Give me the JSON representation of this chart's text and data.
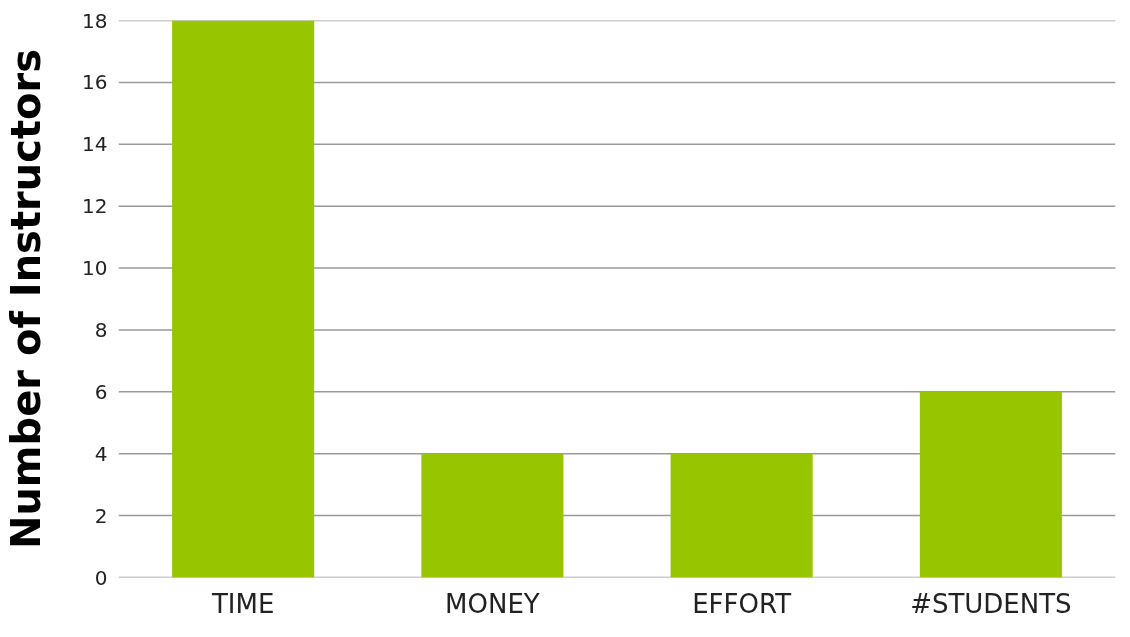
{
  "chart_data": {
    "type": "bar",
    "ylabel": "Number of Instructors",
    "categories": [
      "TIME",
      "MONEY",
      "EFFORT",
      "#STUDENTS"
    ],
    "values": [
      18,
      4,
      4,
      6
    ],
    "color": "#97c500",
    "ylim": [
      0,
      18
    ],
    "yticks": [
      0,
      2,
      4,
      6,
      8,
      10,
      12,
      14,
      16,
      18
    ],
    "grid": "y"
  }
}
